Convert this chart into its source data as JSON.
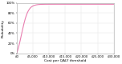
{
  "title": "",
  "xlabel": "Cost per QALY threshold",
  "ylabel": "Probability",
  "xlim": [
    0,
    30000
  ],
  "ylim": [
    0,
    1.0
  ],
  "xticks": [
    0,
    5000,
    10000,
    15000,
    20000,
    25000,
    30000
  ],
  "xtick_labels": [
    "£0",
    "£5,000",
    "£10,000",
    "£15,000",
    "£20,000",
    "£25,000",
    "£30,000"
  ],
  "yticks": [
    0.0,
    0.2,
    0.4,
    0.6,
    0.8,
    1.0
  ],
  "ytick_labels": [
    "0%",
    "20%",
    "40%",
    "60%",
    "80%",
    "100%"
  ],
  "curve_color": "#e87fb0",
  "curve_linewidth": 0.8,
  "background_color": "#ffffff",
  "grid_color": "#e0e0e0",
  "label_fontsize": 3.2,
  "tick_fontsize": 2.8,
  "curve_k": 0.001,
  "curve_x0": 1500
}
